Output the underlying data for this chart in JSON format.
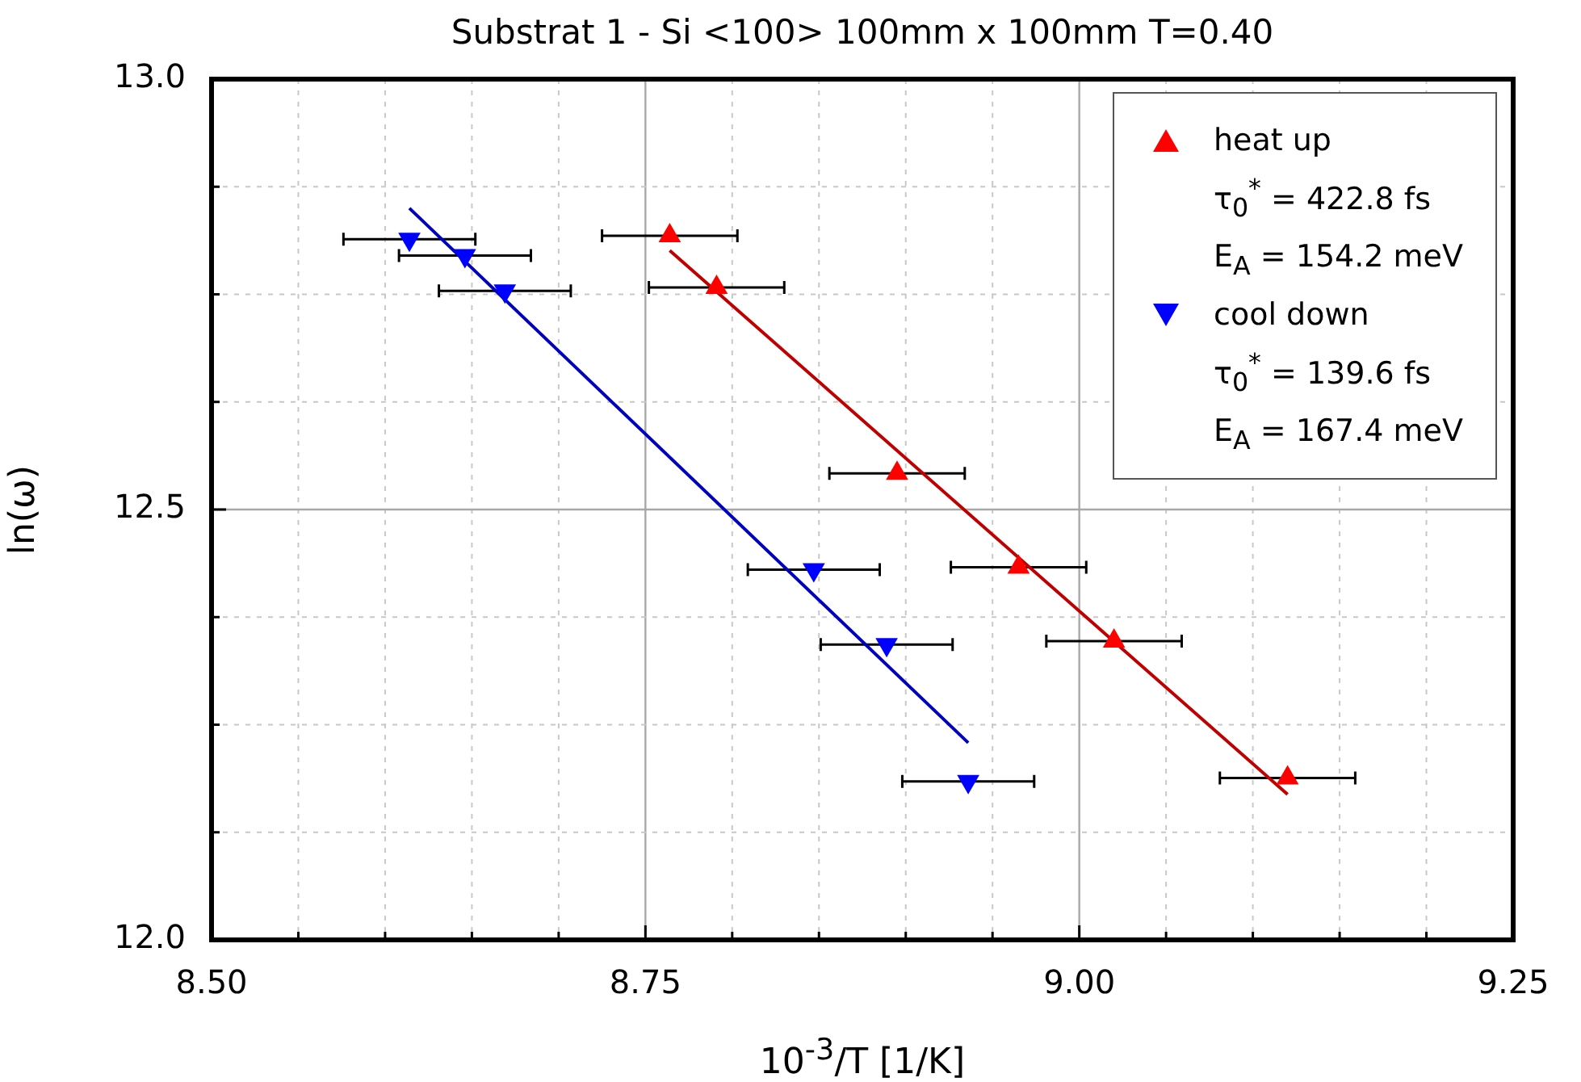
{
  "chart_data": {
    "type": "scatter",
    "title": "Substrat 1 - Si <100> 100mm x 100mm T=0.40",
    "xlabel": "10$^{-3}$/T [1/K]",
    "ylabel": "ln(ω)",
    "xlim": [
      8.5,
      9.25
    ],
    "ylim": [
      12.0,
      13.0
    ],
    "xticks": [
      {
        "value": 8.5,
        "label": "8.50"
      },
      {
        "value": 8.55,
        "label": null
      },
      {
        "value": 8.6,
        "label": null
      },
      {
        "value": 8.65,
        "label": null
      },
      {
        "value": 8.7,
        "label": null
      },
      {
        "value": 8.75,
        "label": "8.75"
      },
      {
        "value": 8.8,
        "label": null
      },
      {
        "value": 8.85,
        "label": null
      },
      {
        "value": 8.9,
        "label": null
      },
      {
        "value": 8.95,
        "label": null
      },
      {
        "value": 9.0,
        "label": "9.00"
      },
      {
        "value": 9.05,
        "label": null
      },
      {
        "value": 9.1,
        "label": null
      },
      {
        "value": 9.15,
        "label": null
      },
      {
        "value": 9.2,
        "label": null
      },
      {
        "value": 9.25,
        "label": "9.25"
      }
    ],
    "yticks": [
      {
        "value": 12.0,
        "label": "12.0"
      },
      {
        "value": 12.125,
        "label": null
      },
      {
        "value": 12.25,
        "label": null
      },
      {
        "value": 12.375,
        "label": null
      },
      {
        "value": 12.5,
        "label": "12.5"
      },
      {
        "value": 12.625,
        "label": null
      },
      {
        "value": 12.75,
        "label": null
      },
      {
        "value": 12.875,
        "label": null
      },
      {
        "value": 13.0,
        "label": "13.0"
      }
    ],
    "grid": true,
    "legend": "top right",
    "annotations": [
      "τ$_{0}$$^{*}$ = 422.8 fs",
      "E$_{A}$ = 154.2 meV",
      "τ$_{0}$$^{*}$ = 139.6 fs",
      "E$_{A}$ = 167.4 meV"
    ],
    "series": [
      {
        "name": "heat up",
        "type": "scatter",
        "marker": "triangle",
        "color": "#ff0000",
        "x": [
          8.764,
          8.791,
          8.895,
          8.965,
          9.02,
          9.12
        ],
        "values": [
          12.818,
          12.758,
          12.542,
          12.433,
          12.347,
          12.188
        ],
        "xerrors": [
          0.039,
          0.039,
          0.039,
          0.039,
          0.039,
          0.039
        ]
      },
      {
        "name": "cool down",
        "type": "scatter",
        "marker": "triangle_down",
        "color": "#0000ff",
        "x": [
          8.614,
          8.646,
          8.669,
          8.847,
          8.889,
          8.936
        ],
        "values": [
          12.814,
          12.795,
          12.754,
          12.43,
          12.343,
          12.184
        ],
        "xerrors": [
          0.038,
          0.038,
          0.038,
          0.038,
          0.038,
          0.038
        ]
      },
      {
        "type": "line",
        "color": "#c00000",
        "x": [
          8.764,
          9.12
        ],
        "values": [
          12.801,
          12.169
        ]
      },
      {
        "type": "line",
        "color": "#0000c0",
        "x": [
          8.614,
          8.936
        ],
        "values": [
          12.85,
          12.229
        ]
      }
    ]
  }
}
